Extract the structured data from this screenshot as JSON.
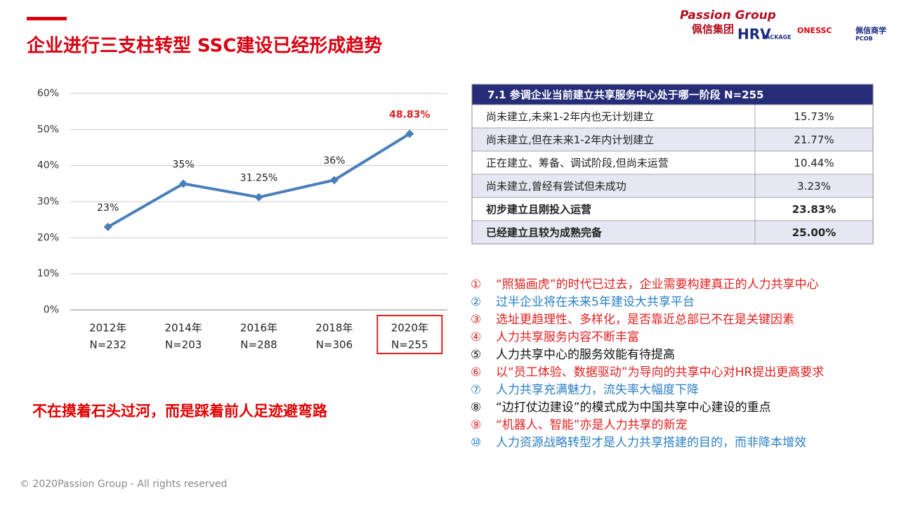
{
  "title": "企业进行三支柱转型 SSC建设已经形成趋势",
  "logos": [
    "Passion Group",
    "佩信集团",
    "HRV",
    "PACKAGE",
    "ONESSC",
    "佩信商学",
    "PCOB"
  ],
  "chart_data": {
    "type": "line",
    "categories": [
      "2012年",
      "2014年",
      "2016年",
      "2018年",
      "2020年"
    ],
    "sample_sizes": [
      "N=232",
      "N=203",
      "N=288",
      "N=306",
      "N=255"
    ],
    "values": [
      23,
      35,
      31.25,
      36,
      48.83
    ],
    "value_labels": [
      "23%",
      "35%",
      "31.25%",
      "36%",
      "48.83%"
    ],
    "color": "#4a7ebb",
    "highlight_color": "#e02020",
    "highlight": 4,
    "ylim": [
      0,
      60
    ],
    "yticks": [
      {
        "value": 0,
        "label": "0%"
      },
      {
        "value": 10,
        "label": "10%"
      },
      {
        "value": 20,
        "label": "20%"
      },
      {
        "value": 30,
        "label": "30%"
      },
      {
        "value": 40,
        "label": "40%"
      },
      {
        "value": 50,
        "label": "50%"
      },
      {
        "value": 60,
        "label": "60%"
      }
    ],
    "grid": true
  },
  "table": {
    "title": "7.1 参调企业当前建立共享服务中心处于哪一阶段 N=255",
    "rows": [
      [
        "尚未建立,未来1-2年内也无计划建立",
        "15.73%"
      ],
      [
        "尚未建立,但在未来1-2年内计划建立",
        "21.77%"
      ],
      [
        "正在建立、筹备、调试阶段,但尚未运营",
        "10.44%"
      ],
      [
        "尚未建立,曾经有尝试但未成功",
        "3.23%"
      ],
      [
        "初步建立且刚投入运营",
        "23.83%"
      ],
      [
        "已经建立且较为成熟完备",
        "25.00%"
      ]
    ],
    "bold_rows": [
      4,
      5
    ]
  },
  "slogan": "不在摸着石头过河，而是踩着前人足迹避弯路",
  "points": [
    {
      "marker": "①",
      "text": "“照猫画虎”的时代已过去，企业需要构建真正的人力共享中心",
      "color": "#e02020"
    },
    {
      "marker": "②",
      "text": "过半企业将在未来5年建设大共享平台",
      "color": "#2a7fc4"
    },
    {
      "marker": "③",
      "text": "选址更趋理性、多样化，是否靠近总部已不在是关键因素",
      "color": "#e02020"
    },
    {
      "marker": "④",
      "text": "人力共享服务内容不断丰富",
      "color": "#e02020"
    },
    {
      "marker": "⑤",
      "text": "人力共享中心的服务效能有待提高",
      "color": "#111111"
    },
    {
      "marker": "⑥",
      "text": "以“员工体验、数据驱动”为导向的共享中心对HR提出更高要求",
      "color": "#e02020"
    },
    {
      "marker": "⑦",
      "text": "人力共享充满魅力，流失率大幅度下降",
      "color": "#2a7fc4"
    },
    {
      "marker": "⑧",
      "text": "“边打仗边建设”的模式成为中国共享中心建设的重点",
      "color": "#111111"
    },
    {
      "marker": "⑨",
      "text": "“机器人、智能”亦是人力共享的新宠",
      "color": "#e02020"
    },
    {
      "marker": "⑩",
      "text": "人力资源战略转型才是人力共享搭建的目的，而非降本增效",
      "color": "#2a7fc4"
    }
  ],
  "footer": "© 2020Passion Group - All rights reserved"
}
